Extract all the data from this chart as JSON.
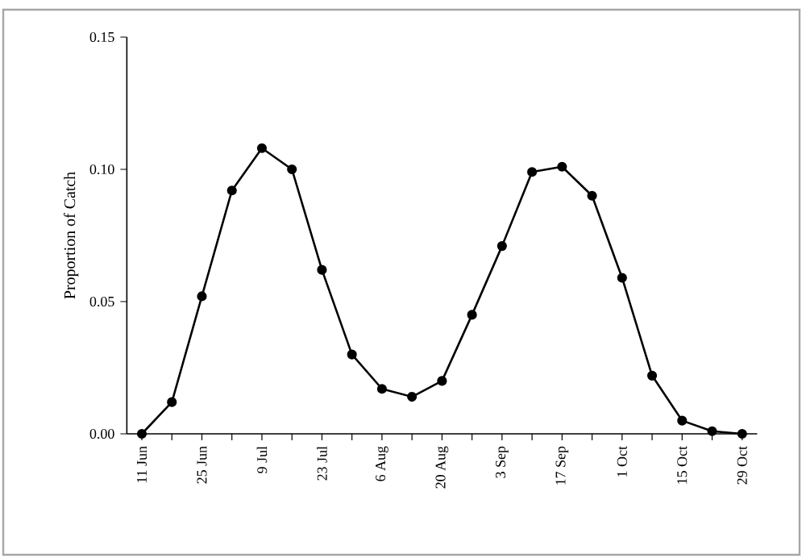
{
  "chart_data": {
    "type": "line",
    "ylabel": "Proportion of Catch",
    "categories": [
      "11 Jun",
      null,
      "25 Jun",
      null,
      "9 Jul",
      null,
      "23 Jul",
      null,
      "6 Aug",
      null,
      "20 Aug",
      null,
      "3 Sep",
      null,
      "17 Sep",
      null,
      "1 Oct",
      null,
      "15 Oct",
      null,
      "29 Oct"
    ],
    "series": [
      {
        "color": "#000000",
        "values": [
          0.0,
          0.012,
          0.052,
          0.092,
          0.108,
          0.1,
          0.062,
          0.03,
          0.017,
          0.014,
          0.02,
          0.045,
          0.071,
          0.099,
          0.101,
          0.09,
          0.059,
          0.022,
          0.005,
          0.001,
          0.0
        ]
      }
    ],
    "ylim": [
      0,
      0.15
    ],
    "yticks": [
      {
        "value": 0,
        "label": "0.00"
      },
      {
        "value": 0.05,
        "label": "0.05"
      },
      {
        "value": 0.1,
        "label": "0.10"
      },
      {
        "value": 0.15,
        "label": "0.15"
      }
    ],
    "marker": "circle",
    "line_style": "solid",
    "grid": false
  }
}
